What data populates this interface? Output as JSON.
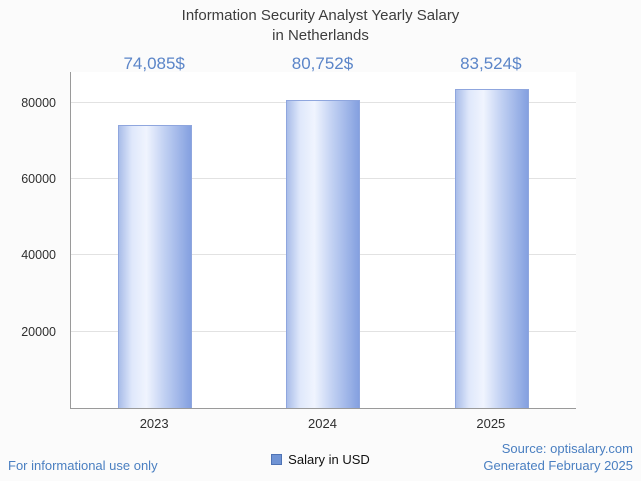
{
  "title": {
    "line1": "Information Security Analyst Yearly Salary",
    "line2": "in Netherlands"
  },
  "chart_data": {
    "type": "bar",
    "title": "Information Security Analyst Yearly Salary in Netherlands",
    "categories": [
      "2023",
      "2024",
      "2025"
    ],
    "values": [
      74085,
      80752,
      83524
    ],
    "value_labels": [
      "74,085$",
      "80,752$",
      "83,524$"
    ],
    "series_name": "Salary in USD",
    "xlabel": "",
    "ylabel": "",
    "ylim": [
      0,
      88000
    ],
    "yticks": [
      20000,
      40000,
      60000,
      80000
    ],
    "grid": "horizontal",
    "legend_position": "bottom"
  },
  "legend": {
    "label": "Salary in USD",
    "swatch_color": "#6f93d4"
  },
  "footer": {
    "left": "For informational use only",
    "source": "Source: optisalary.com",
    "generated": "Generated February 2025"
  },
  "colors": {
    "value_label_text": "#5b85c8",
    "footer_text": "#4a7fc1",
    "bar_light": "#f0f4fe",
    "bar_dark": "#84a0e0",
    "axis": "#9a9a9a",
    "gridline": "#e2e2e2"
  }
}
